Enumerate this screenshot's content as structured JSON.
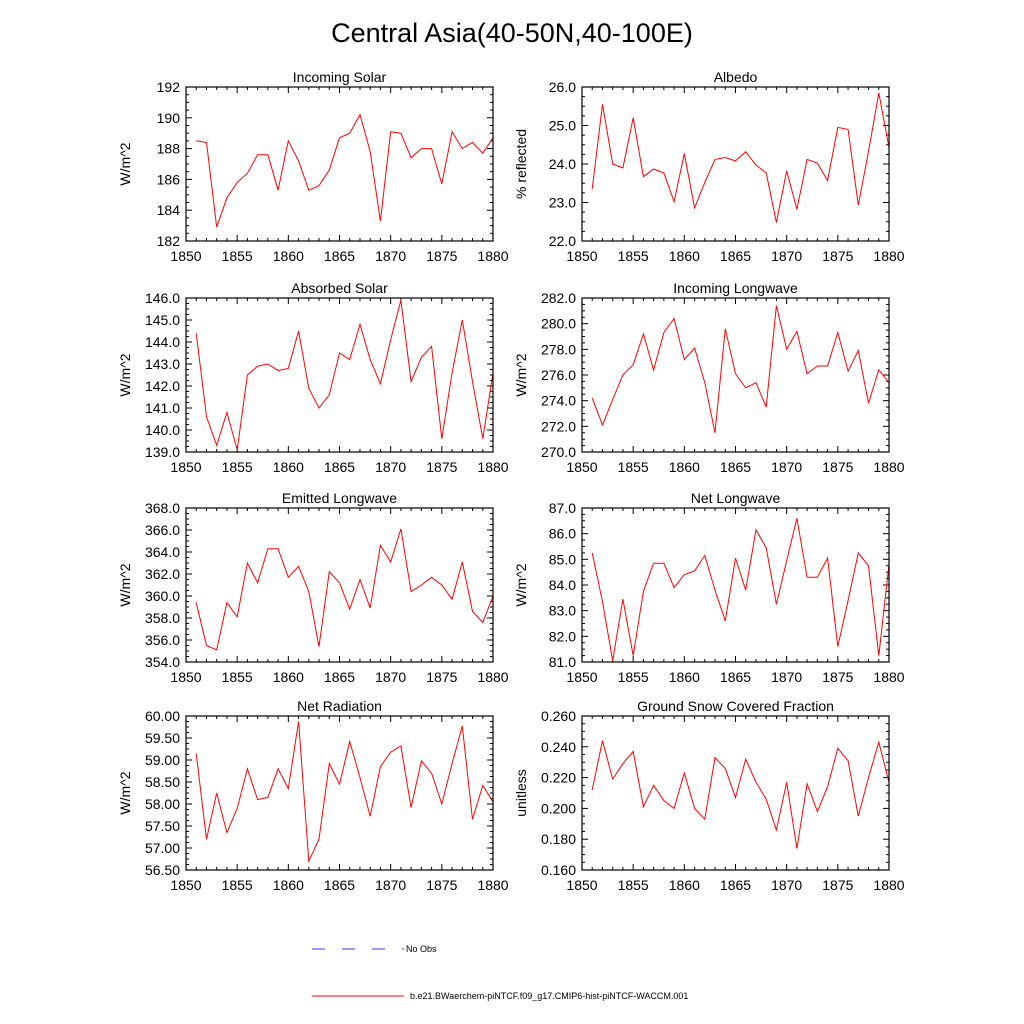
{
  "page_title": "Central Asia(40-50N,40-100E)",
  "legend": {
    "obs_label": "No Obs",
    "obs_color": "#3333ff",
    "model_label": "b.e21.BWaerchem-piNTCF.f09_g17.CMIP6-hist-piNTCF-WACCM.001",
    "model_color": "#ff0000"
  },
  "chart_data": [
    {
      "type": "line",
      "title": "Incoming Solar",
      "ylabel": "W/m^2",
      "xlim": [
        1850,
        1880
      ],
      "ylim": [
        182,
        192
      ],
      "xticks": [
        1850,
        1855,
        1860,
        1865,
        1870,
        1875,
        1880
      ],
      "yticks": [
        "182",
        "184",
        "186",
        "188",
        "190",
        "192"
      ],
      "grid": false,
      "series": [
        {
          "color": "#ff0000",
          "x": [
            1851,
            1852,
            1853,
            1854,
            1855,
            1856,
            1857,
            1858,
            1859,
            1860,
            1861,
            1862,
            1863,
            1864,
            1865,
            1866,
            1867,
            1868,
            1869,
            1870,
            1871,
            1872,
            1873,
            1874,
            1875,
            1876,
            1877,
            1878,
            1879,
            1880
          ],
          "values": [
            188.5,
            188.4,
            182.9,
            184.8,
            185.8,
            186.4,
            187.6,
            187.6,
            185.3,
            188.5,
            187.2,
            185.3,
            185.6,
            186.6,
            188.7,
            189.0,
            190.2,
            187.8,
            183.3,
            189.1,
            189.0,
            187.4,
            188.0,
            188.0,
            185.7,
            189.1,
            188.0,
            188.4,
            187.7,
            188.7
          ]
        }
      ]
    },
    {
      "type": "line",
      "title": "Albedo",
      "ylabel": "% reflected",
      "xlim": [
        1850,
        1880
      ],
      "ylim": [
        22.0,
        26.0
      ],
      "xticks": [
        1850,
        1855,
        1860,
        1865,
        1870,
        1875,
        1880
      ],
      "yticks": [
        "22.0",
        "23.0",
        "24.0",
        "25.0",
        "26.0"
      ],
      "grid": false,
      "series": [
        {
          "color": "#ff0000",
          "x": [
            1851,
            1852,
            1853,
            1854,
            1855,
            1856,
            1857,
            1858,
            1859,
            1860,
            1861,
            1862,
            1863,
            1864,
            1865,
            1866,
            1867,
            1868,
            1869,
            1870,
            1871,
            1872,
            1873,
            1874,
            1875,
            1876,
            1877,
            1878,
            1879,
            1880
          ],
          "values": [
            23.35,
            25.55,
            24.0,
            23.9,
            25.2,
            23.67,
            23.87,
            23.77,
            23.02,
            24.27,
            22.86,
            23.52,
            24.12,
            24.17,
            24.08,
            24.32,
            23.97,
            23.77,
            22.48,
            23.82,
            22.82,
            24.12,
            24.02,
            23.57,
            24.95,
            24.9,
            22.93,
            24.32,
            25.85,
            24.42
          ]
        }
      ]
    },
    {
      "type": "line",
      "title": "Absorbed Solar",
      "ylabel": "W/m^2",
      "xlim": [
        1850,
        1880
      ],
      "ylim": [
        139.0,
        146.0
      ],
      "xticks": [
        1850,
        1855,
        1860,
        1865,
        1870,
        1875,
        1880
      ],
      "yticks": [
        "139.0",
        "140.0",
        "141.0",
        "142.0",
        "143.0",
        "144.0",
        "145.0",
        "146.0"
      ],
      "grid": false,
      "series": [
        {
          "color": "#ff0000",
          "x": [
            1851,
            1852,
            1853,
            1854,
            1855,
            1856,
            1857,
            1858,
            1859,
            1860,
            1861,
            1862,
            1863,
            1864,
            1865,
            1866,
            1867,
            1868,
            1869,
            1870,
            1871,
            1872,
            1873,
            1874,
            1875,
            1876,
            1877,
            1878,
            1879,
            1880
          ],
          "values": [
            144.4,
            140.6,
            139.3,
            140.8,
            139.1,
            142.5,
            142.9,
            143.0,
            142.7,
            142.8,
            144.5,
            141.9,
            141.0,
            141.6,
            143.5,
            143.2,
            144.8,
            143.2,
            142.1,
            144.1,
            145.9,
            142.2,
            143.3,
            143.8,
            139.6,
            142.6,
            145.0,
            142.2,
            139.6,
            142.6
          ]
        }
      ]
    },
    {
      "type": "line",
      "title": "Incoming Longwave",
      "ylabel": "W/m^2",
      "xlim": [
        1850,
        1880
      ],
      "ylim": [
        270.0,
        282.0
      ],
      "xticks": [
        1850,
        1855,
        1860,
        1865,
        1870,
        1875,
        1880
      ],
      "yticks": [
        "270.0",
        "272.0",
        "274.0",
        "276.0",
        "278.0",
        "280.0",
        "282.0"
      ],
      "grid": false,
      "series": [
        {
          "color": "#ff0000",
          "x": [
            1851,
            1852,
            1853,
            1854,
            1855,
            1856,
            1857,
            1858,
            1859,
            1860,
            1861,
            1862,
            1863,
            1864,
            1865,
            1866,
            1867,
            1868,
            1869,
            1870,
            1871,
            1872,
            1873,
            1874,
            1875,
            1876,
            1877,
            1878,
            1879,
            1880
          ],
          "values": [
            274.2,
            272.1,
            274.1,
            276.0,
            276.8,
            279.2,
            276.4,
            279.3,
            280.4,
            277.2,
            278.1,
            275.4,
            271.5,
            279.6,
            276.1,
            275.0,
            275.4,
            273.5,
            281.4,
            278.0,
            279.4,
            276.1,
            276.7,
            276.7,
            279.3,
            276.3,
            277.9,
            273.8,
            276.4,
            275.4
          ]
        }
      ]
    },
    {
      "type": "line",
      "title": "Emitted Longwave",
      "ylabel": "W/m^2",
      "xlim": [
        1850,
        1880
      ],
      "ylim": [
        354.0,
        368.0
      ],
      "xticks": [
        1850,
        1855,
        1860,
        1865,
        1870,
        1875,
        1880
      ],
      "yticks": [
        "354.0",
        "356.0",
        "358.0",
        "360.0",
        "362.0",
        "364.0",
        "366.0",
        "368.0"
      ],
      "grid": false,
      "series": [
        {
          "color": "#ff0000",
          "x": [
            1851,
            1852,
            1853,
            1854,
            1855,
            1856,
            1857,
            1858,
            1859,
            1860,
            1861,
            1862,
            1863,
            1864,
            1865,
            1866,
            1867,
            1868,
            1869,
            1870,
            1871,
            1872,
            1873,
            1874,
            1875,
            1876,
            1877,
            1878,
            1879,
            1880
          ],
          "values": [
            359.4,
            355.5,
            355.1,
            359.4,
            358.1,
            363.0,
            361.2,
            364.3,
            364.3,
            361.7,
            362.7,
            360.4,
            355.4,
            362.2,
            361.2,
            358.8,
            361.5,
            358.9,
            364.6,
            363.1,
            366.1,
            360.4,
            361.0,
            361.7,
            361.0,
            359.7,
            363.1,
            358.6,
            357.6,
            360.0
          ]
        }
      ]
    },
    {
      "type": "line",
      "title": "Net Longwave",
      "ylabel": "W/m^2",
      "xlim": [
        1850,
        1880
      ],
      "ylim": [
        81.0,
        87.0
      ],
      "xticks": [
        1850,
        1855,
        1860,
        1865,
        1870,
        1875,
        1880
      ],
      "yticks": [
        "81.0",
        "82.0",
        "83.0",
        "84.0",
        "85.0",
        "86.0",
        "87.0"
      ],
      "grid": false,
      "series": [
        {
          "color": "#ff0000",
          "x": [
            1851,
            1852,
            1853,
            1854,
            1855,
            1856,
            1857,
            1858,
            1859,
            1860,
            1861,
            1862,
            1863,
            1864,
            1865,
            1866,
            1867,
            1868,
            1869,
            1870,
            1871,
            1872,
            1873,
            1874,
            1875,
            1876,
            1877,
            1878,
            1879,
            1880
          ],
          "values": [
            85.25,
            83.35,
            81.05,
            83.45,
            81.25,
            83.75,
            84.85,
            84.85,
            83.9,
            84.4,
            84.55,
            85.15,
            83.8,
            82.6,
            85.05,
            83.8,
            86.15,
            85.45,
            83.25,
            84.95,
            86.6,
            84.3,
            84.3,
            85.05,
            81.6,
            83.4,
            85.25,
            84.75,
            81.25,
            84.8
          ]
        }
      ]
    },
    {
      "type": "line",
      "title": "Net Radiation",
      "ylabel": "W/m^2",
      "xlim": [
        1850,
        1880
      ],
      "ylim": [
        56.5,
        60.0
      ],
      "xticks": [
        1850,
        1855,
        1860,
        1865,
        1870,
        1875,
        1880
      ],
      "yticks": [
        "56.50",
        "57.00",
        "57.50",
        "58.00",
        "58.50",
        "59.00",
        "59.50",
        "60.00"
      ],
      "grid": false,
      "series": [
        {
          "color": "#ff0000",
          "x": [
            1851,
            1852,
            1853,
            1854,
            1855,
            1856,
            1857,
            1858,
            1859,
            1860,
            1861,
            1862,
            1863,
            1864,
            1865,
            1866,
            1867,
            1868,
            1869,
            1870,
            1871,
            1872,
            1873,
            1874,
            1875,
            1876,
            1877,
            1878,
            1879,
            1880
          ],
          "values": [
            59.15,
            57.2,
            58.25,
            57.35,
            57.9,
            58.8,
            58.1,
            58.15,
            58.8,
            58.35,
            59.88,
            56.7,
            57.2,
            58.92,
            58.45,
            59.42,
            58.6,
            57.72,
            58.85,
            59.18,
            59.32,
            57.92,
            58.98,
            58.7,
            58.0,
            58.92,
            59.77,
            57.65,
            58.42,
            58.05
          ]
        }
      ]
    },
    {
      "type": "line",
      "title": "Ground Snow Covered Fraction",
      "ylabel": "unitless",
      "xlim": [
        1850,
        1880
      ],
      "ylim": [
        0.16,
        0.26
      ],
      "xticks": [
        1850,
        1855,
        1860,
        1865,
        1870,
        1875,
        1880
      ],
      "yticks": [
        "0.160",
        "0.180",
        "0.200",
        "0.220",
        "0.240",
        "0.260"
      ],
      "grid": false,
      "series": [
        {
          "color": "#ff0000",
          "x": [
            1851,
            1852,
            1853,
            1854,
            1855,
            1856,
            1857,
            1858,
            1859,
            1860,
            1861,
            1862,
            1863,
            1864,
            1865,
            1866,
            1867,
            1868,
            1869,
            1870,
            1871,
            1872,
            1873,
            1874,
            1875,
            1876,
            1877,
            1878,
            1879,
            1880
          ],
          "values": [
            0.212,
            0.244,
            0.219,
            0.229,
            0.237,
            0.201,
            0.215,
            0.205,
            0.2,
            0.223,
            0.2,
            0.193,
            0.233,
            0.226,
            0.207,
            0.232,
            0.217,
            0.206,
            0.186,
            0.217,
            0.174,
            0.216,
            0.198,
            0.214,
            0.239,
            0.231,
            0.195,
            0.22,
            0.243,
            0.217
          ]
        }
      ]
    }
  ]
}
